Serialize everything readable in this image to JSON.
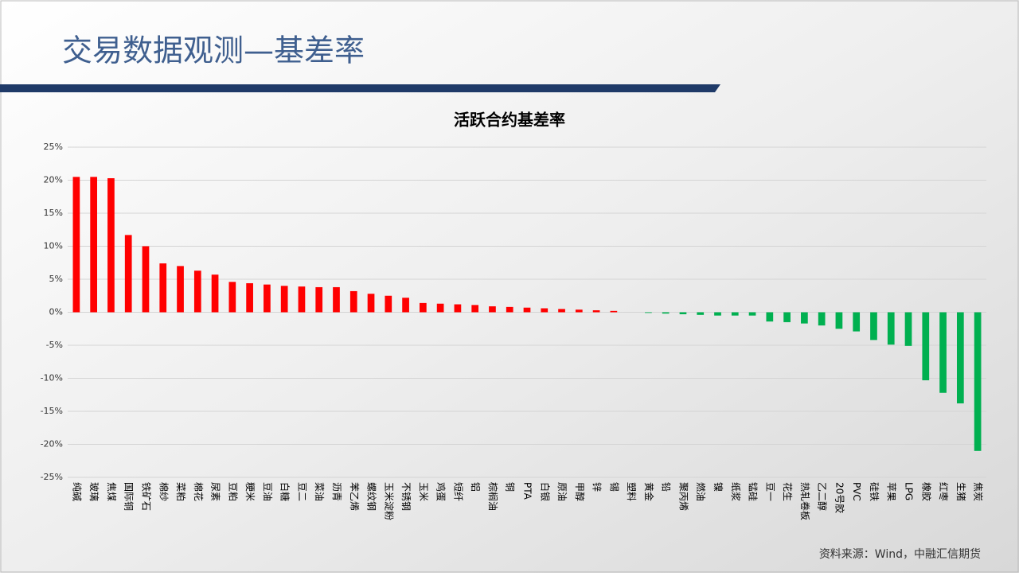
{
  "slide": {
    "title": "交易数据观测—基差率",
    "source": "资料来源：Wind，中融汇信期货"
  },
  "chart_data": {
    "type": "bar",
    "title": "活跃合约基差率",
    "categories": [
      "纯碱",
      "玻璃",
      "焦煤",
      "国际铜",
      "铁矿石",
      "棉纱",
      "菜粕",
      "棉花",
      "尿素",
      "豆粕",
      "粳米",
      "豆油",
      "白糖",
      "豆二",
      "菜油",
      "沥青",
      "苯乙烯",
      "螺纹钢",
      "玉米淀粉",
      "不锈钢",
      "玉米",
      "鸡蛋",
      "短纤",
      "铝",
      "棕榈油",
      "铜",
      "PTA",
      "白银",
      "原油",
      "甲醇",
      "锌",
      "锡",
      "塑料",
      "黄金",
      "铅",
      "聚丙烯",
      "燃油",
      "镍",
      "纸浆",
      "锰硅",
      "豆一",
      "花生",
      "热轧卷板",
      "乙二醇",
      "20号胶",
      "PVC",
      "硅铁",
      "苹果",
      "LPG",
      "橡胶",
      "红枣",
      "生猪",
      "焦炭"
    ],
    "values": [
      20.5,
      20.5,
      20.3,
      11.7,
      10.0,
      7.4,
      7.0,
      6.3,
      5.7,
      4.6,
      4.4,
      4.2,
      4.0,
      3.9,
      3.8,
      3.8,
      3.2,
      2.8,
      2.5,
      2.2,
      1.4,
      1.3,
      1.2,
      1.1,
      0.9,
      0.8,
      0.7,
      0.6,
      0.5,
      0.4,
      0.3,
      0.2,
      0.0,
      -0.1,
      -0.2,
      -0.3,
      -0.4,
      -0.5,
      -0.5,
      -0.5,
      -1.4,
      -1.5,
      -1.7,
      -2.0,
      -2.5,
      -2.9,
      -4.2,
      -4.9,
      -5.1,
      -10.3,
      -12.2,
      -13.8,
      -21.0
    ],
    "positive_color": "#ff0000",
    "negative_color": "#00b050",
    "ylim": [
      -25,
      25
    ],
    "yticks": [
      {
        "value": -25,
        "label": "-25%"
      },
      {
        "value": -20,
        "label": "-20%"
      },
      {
        "value": -15,
        "label": "-15%"
      },
      {
        "value": -10,
        "label": "-10%"
      },
      {
        "value": -5,
        "label": "-5%"
      },
      {
        "value": 0,
        "label": "0%"
      },
      {
        "value": 5,
        "label": "5%"
      },
      {
        "value": 10,
        "label": "10%"
      },
      {
        "value": 15,
        "label": "15%"
      },
      {
        "value": 20,
        "label": "20%"
      },
      {
        "value": 25,
        "label": "25%"
      }
    ],
    "grid": true
  }
}
